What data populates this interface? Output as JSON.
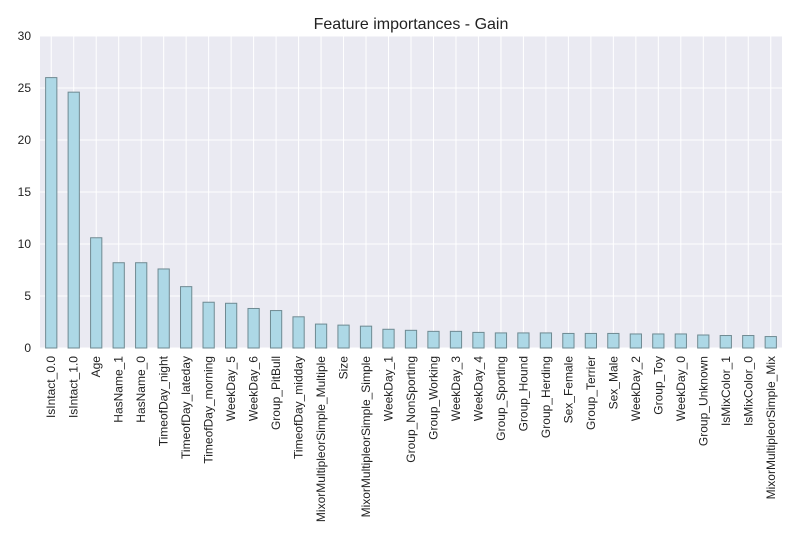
{
  "chart_data": {
    "type": "bar",
    "title": "Feature importances - Gain",
    "xlabel": "",
    "ylabel": "",
    "ylim": [
      0,
      30
    ],
    "yticks": [
      0,
      5,
      10,
      15,
      20,
      25,
      30
    ],
    "grid": true,
    "legend": "none",
    "bar_color": "#add8e6",
    "bar_edge_color": "#6f8a92",
    "background_color": "#eaeaf2",
    "categories": [
      "IsIntact_0.0",
      "IsIntact_1.0",
      "Age",
      "HasName_1",
      "HasName_0",
      "TimeofDay_night",
      "TimeofDay_lateday",
      "TimeofDay_morning",
      "WeekDay_5",
      "WeekDay_6",
      "Group_PitBull",
      "TimeofDay_midday",
      "MixorMultipleorSimple_Multiple",
      "Size",
      "MixorMultipleorSimple_Simple",
      "WeekDay_1",
      "Group_NonSporting",
      "Group_Working",
      "WeekDay_3",
      "WeekDay_4",
      "Group_Sporting",
      "Group_Hound",
      "Group_Herding",
      "Sex_Female",
      "Group_Terrier",
      "Sex_Male",
      "WeekDay_2",
      "Group_Toy",
      "WeekDay_0",
      "Group_Unknown",
      "IsMixColor_1",
      "IsMixColor_0",
      "MixorMultipleorSimple_Mix"
    ],
    "values": [
      26.0,
      24.6,
      10.6,
      8.2,
      8.2,
      7.6,
      5.9,
      4.4,
      4.3,
      3.8,
      3.6,
      3.0,
      2.3,
      2.2,
      2.1,
      1.8,
      1.7,
      1.6,
      1.6,
      1.5,
      1.45,
      1.45,
      1.45,
      1.4,
      1.4,
      1.4,
      1.35,
      1.35,
      1.35,
      1.25,
      1.2,
      1.2,
      1.1
    ]
  }
}
